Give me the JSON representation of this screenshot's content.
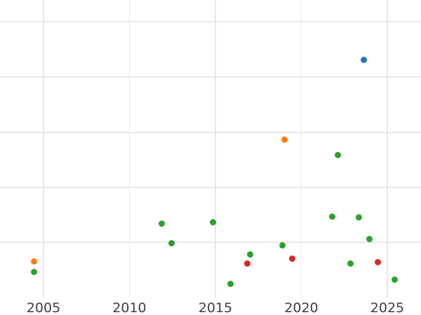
{
  "chart_data": {
    "type": "scatter",
    "title": "",
    "xlabel": "",
    "ylabel": "",
    "grid": true,
    "legend_position": "none",
    "background": "#ffffff",
    "gridline_color": "#e8e8e8",
    "text_color": "#3d3d3d",
    "x_tick_labels": [
      "2005",
      "2010",
      "2015",
      "2020",
      "2025"
    ],
    "x_ticks": [
      2005,
      2010,
      2015,
      2020,
      2025
    ],
    "x_range": [
      2002.47,
      2026.96
    ],
    "y_tick_labels": [],
    "y_gridline_units": [
      1,
      2,
      3,
      4,
      5
    ],
    "y_range": [
      0,
      5.4
    ],
    "palette": {
      "blue": "#1f77b4",
      "orange": "#ff7f0e",
      "green": "#2ca02c",
      "red": "#d62728"
    },
    "points": [
      {
        "x": 2004.47,
        "y": 0.65,
        "color": "orange"
      },
      {
        "x": 2004.47,
        "y": 0.46,
        "color": "green"
      },
      {
        "x": 2011.86,
        "y": 1.34,
        "color": "green"
      },
      {
        "x": 2012.43,
        "y": 0.98,
        "color": "green"
      },
      {
        "x": 2014.84,
        "y": 1.37,
        "color": "green"
      },
      {
        "x": 2015.86,
        "y": 0.25,
        "color": "green"
      },
      {
        "x": 2016.84,
        "y": 0.62,
        "color": "red"
      },
      {
        "x": 2017.04,
        "y": 0.78,
        "color": "green"
      },
      {
        "x": 2018.88,
        "y": 0.95,
        "color": "green"
      },
      {
        "x": 2019.04,
        "y": 2.86,
        "color": "orange"
      },
      {
        "x": 2019.45,
        "y": 0.71,
        "color": "red"
      },
      {
        "x": 2021.78,
        "y": 1.47,
        "color": "green"
      },
      {
        "x": 2022.14,
        "y": 2.59,
        "color": "green"
      },
      {
        "x": 2022.84,
        "y": 0.62,
        "color": "green"
      },
      {
        "x": 2023.33,
        "y": 1.46,
        "color": "green"
      },
      {
        "x": 2023.65,
        "y": 4.32,
        "color": "blue"
      },
      {
        "x": 2023.94,
        "y": 1.06,
        "color": "green"
      },
      {
        "x": 2024.43,
        "y": 0.64,
        "color": "red"
      },
      {
        "x": 2025.41,
        "y": 0.33,
        "color": "green"
      }
    ]
  }
}
